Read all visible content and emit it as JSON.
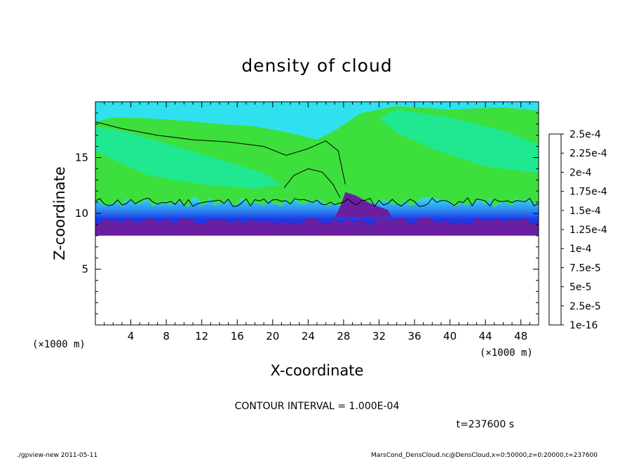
{
  "chart_data": {
    "type": "heatmap",
    "title": "density of cloud",
    "xlabel": "X-coordinate",
    "ylabel": "Z-coordinate",
    "x_unit": "(×1000 m)",
    "y_unit": "(×1000 m)",
    "xlim": [
      0,
      50
    ],
    "ylim": [
      0,
      20
    ],
    "x_ticks": [
      4,
      8,
      12,
      16,
      20,
      24,
      28,
      32,
      36,
      40,
      44,
      48
    ],
    "y_ticks": [
      5,
      10,
      15
    ],
    "colorbar": {
      "labels": [
        "1e-16",
        "2.5e-5",
        "5e-5",
        "7.5e-5",
        "1e-4",
        "1.25e-4",
        "1.5e-4",
        "1.75e-4",
        "2e-4",
        "2.25e-4",
        "2.5e-4"
      ],
      "colors": [
        "#6a1fa0",
        "#2a16c8",
        "#1c3ce6",
        "#2f8cf0",
        "#2fe0ee",
        "#20e890",
        "#3cdf3c",
        "#8ce020",
        "#ffe020",
        "#ff9a10",
        "#ff3020",
        "#ff6a70",
        "#ffb0b0"
      ]
    },
    "cloud_layer": {
      "base_z": 8,
      "mixed_top_z": 11,
      "top_z": 20,
      "feature_x": 28,
      "feature_top_z": 16.5
    },
    "contour_interval": "CONTOUR INTERVAL = 1.000E-04",
    "time": "t=237600 s"
  },
  "footer": {
    "left": "./gpview-new 2011-05-11",
    "right": "MarsCond_DensCloud.nc@DensCloud,x=0:50000,z=0:20000,t=237600"
  }
}
